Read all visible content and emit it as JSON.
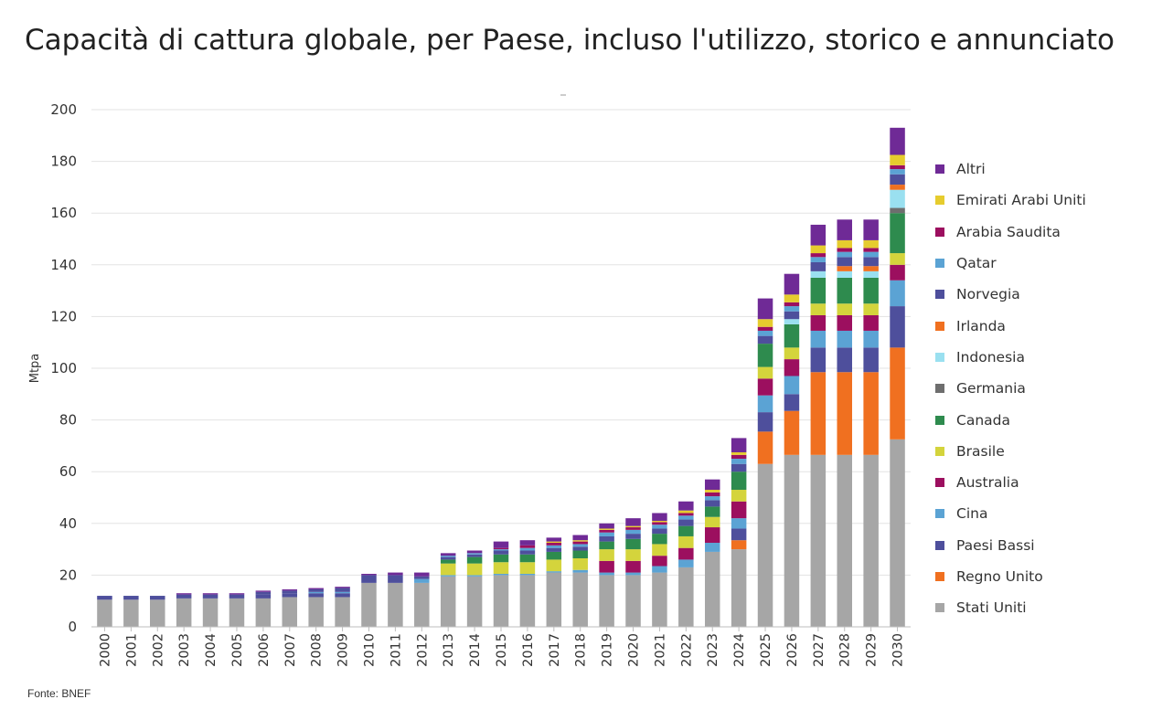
{
  "title": "Capacità di cattura globale, per Paese, incluso l'utilizzo, storico e annunciato",
  "source": "Fonte: BNEF",
  "chart_data": {
    "type": "bar",
    "stacked": true,
    "title": "Capacità di cattura globale, per Paese, incluso l'utilizzo, storico e annunciato",
    "ylabel": "Mtpa",
    "xlabel": "",
    "ylim": [
      0,
      200
    ],
    "yticks": [
      0,
      20,
      40,
      60,
      80,
      100,
      120,
      140,
      160,
      180,
      200
    ],
    "grid": true,
    "legend_position": "right",
    "categories": [
      "2000",
      "2001",
      "2002",
      "2003",
      "2004",
      "2005",
      "2006",
      "2007",
      "2008",
      "2009",
      "2010",
      "2011",
      "2012",
      "2013",
      "2014",
      "2015",
      "2016",
      "2017",
      "2018",
      "2019",
      "2020",
      "2021",
      "2022",
      "2023",
      "2024",
      "2025",
      "2026",
      "2027",
      "2028",
      "2029",
      "2030"
    ],
    "series": [
      {
        "name": "Stati Uniti",
        "color": "#a6a6a6",
        "values": [
          10.5,
          10.5,
          10.5,
          11,
          11,
          11,
          11,
          11.5,
          11.5,
          11.5,
          17,
          17,
          17,
          19.5,
          19.5,
          20,
          20,
          21,
          21,
          20,
          20,
          21,
          23,
          29,
          30,
          63,
          66.5,
          66.5,
          66.5,
          66.5,
          72.5
        ]
      },
      {
        "name": "Regno Unito",
        "color": "#f07020",
        "values": [
          0,
          0,
          0,
          0,
          0,
          0,
          0,
          0,
          0,
          0,
          0,
          0,
          0,
          0,
          0,
          0,
          0,
          0,
          0,
          0,
          0,
          0,
          0,
          0,
          3.5,
          12.5,
          17,
          32,
          32,
          32,
          35.5
        ]
      },
      {
        "name": "Paesi Bassi",
        "color": "#4e4f9c",
        "values": [
          1.5,
          1.5,
          1.5,
          1.5,
          1.5,
          1.5,
          1.5,
          1.5,
          1.5,
          1.5,
          3,
          3,
          0,
          0,
          0,
          0,
          0,
          0,
          0,
          0,
          0,
          0,
          0,
          0,
          4.5,
          7.5,
          6.5,
          9.5,
          9.5,
          9.5,
          16
        ]
      },
      {
        "name": "Cina",
        "color": "#5ba3d4",
        "values": [
          0,
          0,
          0,
          0,
          0,
          0,
          0,
          0,
          0.5,
          0.5,
          0,
          0,
          1.5,
          0.5,
          0.5,
          0.5,
          0.5,
          0.5,
          1,
          1,
          1,
          2.5,
          3,
          3.5,
          4,
          6.5,
          7,
          6.5,
          6.5,
          6.5,
          10
        ]
      },
      {
        "name": "Australia",
        "color": "#9c0f5f",
        "values": [
          0,
          0,
          0,
          0,
          0,
          0,
          0,
          0,
          0,
          0,
          0,
          0,
          0,
          0,
          0,
          0,
          0,
          0,
          0,
          4.5,
          4.5,
          4,
          4.5,
          6,
          6.5,
          6.5,
          6.5,
          6,
          6,
          6,
          6
        ]
      },
      {
        "name": "Brasile",
        "color": "#d4d43c",
        "values": [
          0,
          0,
          0,
          0,
          0,
          0,
          0,
          0,
          0,
          0,
          0,
          0,
          0,
          4.5,
          4.5,
          4.5,
          4.5,
          4.5,
          4.5,
          4.5,
          4.5,
          4.5,
          4.5,
          4,
          4.5,
          4.5,
          4.5,
          4.5,
          4.5,
          4.5,
          4.5
        ]
      },
      {
        "name": "Canada",
        "color": "#2e8b4e",
        "values": [
          0,
          0,
          0,
          0,
          0,
          0,
          0,
          0,
          0,
          0,
          0,
          0,
          0,
          1.5,
          2.5,
          3,
          3,
          3,
          3,
          3,
          4,
          4,
          4,
          4,
          7,
          9,
          9,
          10,
          10,
          10,
          15.5
        ]
      },
      {
        "name": "Germania",
        "color": "#6e6e6e",
        "values": [
          0,
          0,
          0,
          0,
          0,
          0,
          0,
          0,
          0,
          0,
          0,
          0,
          0,
          0,
          0,
          0,
          0,
          0,
          0,
          0,
          0,
          0,
          0,
          0,
          0,
          0,
          0,
          0,
          0,
          0,
          2
        ]
      },
      {
        "name": "Indonesia",
        "color": "#9ae0f0",
        "values": [
          0,
          0,
          0,
          0,
          0,
          0,
          0,
          0,
          0,
          0,
          0,
          0,
          0,
          0,
          0,
          0,
          0,
          0,
          0,
          0,
          0,
          0,
          0,
          0,
          0,
          0,
          2,
          2.5,
          2.5,
          2.5,
          7
        ]
      },
      {
        "name": "Irlanda",
        "color": "#f07020",
        "values": [
          0,
          0,
          0,
          0,
          0,
          0,
          0,
          0,
          0,
          0,
          0,
          0,
          0,
          0,
          0,
          0,
          0,
          0,
          0,
          0,
          0,
          0,
          0,
          0,
          0,
          0,
          0,
          0,
          2,
          2,
          2
        ]
      },
      {
        "name": "Norvegia",
        "color": "#4e4f9c",
        "values": [
          0,
          0,
          0,
          0,
          0,
          0,
          1,
          1,
          1,
          1.5,
          0,
          0,
          1,
          1,
          1,
          1.5,
          1.5,
          1.5,
          1.5,
          2,
          2,
          2,
          2.5,
          2.5,
          3,
          3,
          3,
          3.5,
          3.5,
          3.5,
          4
        ]
      },
      {
        "name": "Qatar",
        "color": "#5ba3d4",
        "values": [
          0,
          0,
          0,
          0,
          0,
          0,
          0,
          0,
          0,
          0,
          0,
          0,
          0,
          0.5,
          0.5,
          0.5,
          1,
          1,
          1,
          1.5,
          1.5,
          1.5,
          1.5,
          1.5,
          2,
          2,
          2,
          2,
          2,
          2,
          2
        ]
      },
      {
        "name": "Arabia Saudita",
        "color": "#9c0f5f",
        "values": [
          0,
          0,
          0,
          0,
          0,
          0,
          0,
          0,
          0,
          0,
          0,
          0,
          0,
          0,
          0,
          0.5,
          1,
          1,
          1,
          1,
          1,
          1,
          1,
          1.5,
          1.5,
          1.5,
          1.5,
          1.5,
          1.5,
          1.5,
          1.5
        ]
      },
      {
        "name": "Emirati Arabi Uniti",
        "color": "#e6cc2e",
        "values": [
          0,
          0,
          0,
          0,
          0,
          0,
          0,
          0,
          0,
          0,
          0,
          0,
          0,
          0,
          0,
          0,
          0,
          0.5,
          0.5,
          0.5,
          0.5,
          0.5,
          1,
          1,
          1,
          3,
          3,
          3,
          3,
          3,
          4
        ]
      },
      {
        "name": "Altri",
        "color": "#6f2a96",
        "values": [
          0,
          0,
          0,
          0.5,
          0.5,
          0.5,
          0.5,
          0.5,
          0.5,
          0.5,
          0.5,
          1,
          1.5,
          1,
          1,
          2.5,
          2,
          1.5,
          2,
          2,
          3,
          3,
          3.5,
          4,
          5.5,
          8,
          8,
          8,
          8,
          8,
          10.5
        ]
      }
    ]
  }
}
